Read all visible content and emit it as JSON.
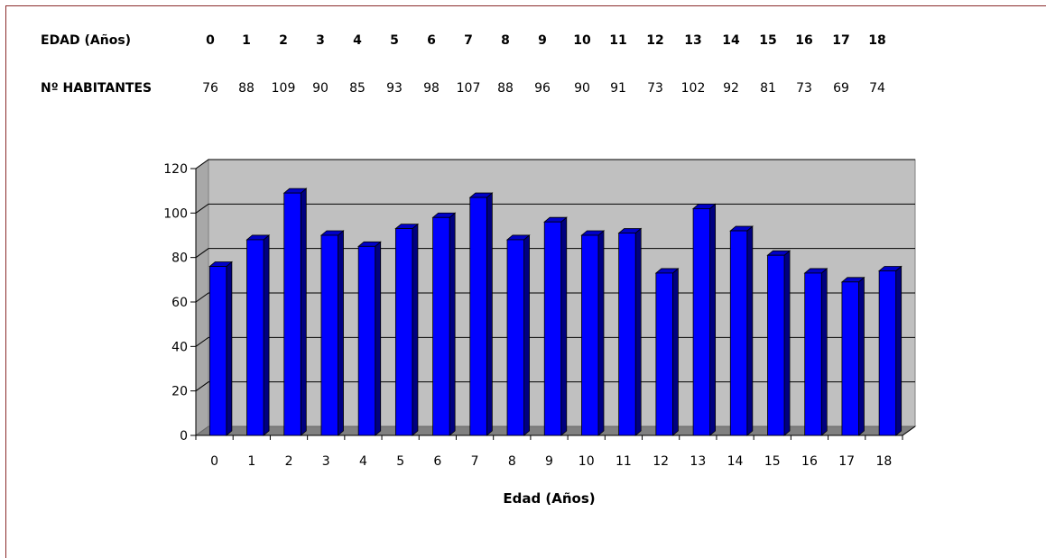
{
  "table": {
    "age_label": "EDAD (Años)",
    "ages": [
      "0",
      "1",
      "2",
      "3",
      "4",
      "5",
      "6",
      "7",
      "8",
      "9",
      "10",
      "11",
      "12",
      "13",
      "14",
      "15",
      "16",
      "17",
      "18"
    ],
    "habitants_label": "Nº HABITANTES",
    "habitants": [
      "76",
      "88",
      "109",
      "90",
      "85",
      "93",
      "98",
      "107",
      "88",
      "96",
      "90",
      "91",
      "73",
      "102",
      "92",
      "81",
      "73",
      "69",
      "74"
    ]
  },
  "chart_data": {
    "type": "bar",
    "categories": [
      "0",
      "1",
      "2",
      "3",
      "4",
      "5",
      "6",
      "7",
      "8",
      "9",
      "10",
      "11",
      "12",
      "13",
      "14",
      "15",
      "16",
      "17",
      "18"
    ],
    "values": [
      76,
      88,
      109,
      90,
      85,
      93,
      98,
      107,
      88,
      96,
      90,
      91,
      73,
      102,
      92,
      81,
      73,
      69,
      74
    ],
    "title": "",
    "xlabel": "Edad (Años)",
    "ylabel": "",
    "ylim": [
      0,
      120
    ],
    "yticks": [
      "0",
      "20",
      "40",
      "60",
      "80",
      "100",
      "120"
    ],
    "grid": true,
    "legend": "none",
    "colors": {
      "bar": "#0000ff",
      "bar_dark": "#000080",
      "wall": "#c0c0c0",
      "floor": "#808080"
    }
  }
}
